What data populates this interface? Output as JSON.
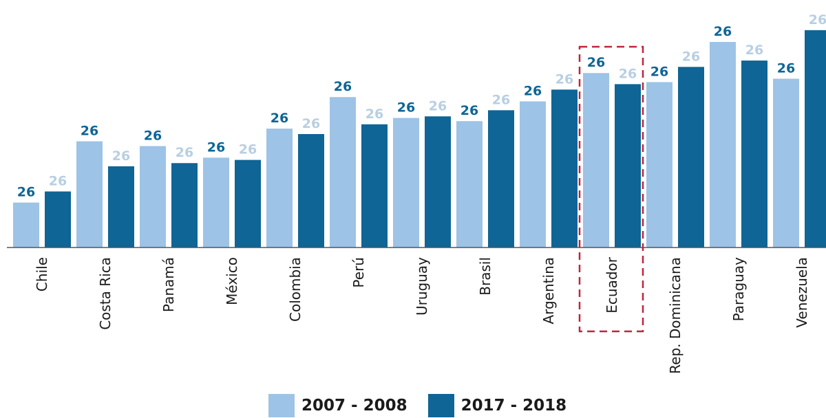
{
  "chart_data": {
    "type": "bar",
    "title": "",
    "xlabel": "",
    "ylabel": "",
    "ylim": [
      0,
      100
    ],
    "categories": [
      "Chile",
      "Costa Rica",
      "Panamá",
      "México",
      "Colombia",
      "Perú",
      "Uruguay",
      "Brasil",
      "Argentina",
      "Ecuador",
      "Rep. Dominicana",
      "Paraguay",
      "Venezuela"
    ],
    "highlighted_category": "Ecuador",
    "series": [
      {
        "name": "2007 - 2008",
        "color": "#9dc3e6",
        "values": [
          19.8,
          46.8,
          44.7,
          39.6,
          52.4,
          66.3,
          57.1,
          55.7,
          64.4,
          76.9,
          72.9,
          90.6,
          74.4
        ],
        "labels": [
          "26",
          "26",
          "26",
          "26",
          "26",
          "26",
          "26",
          "26",
          "26",
          "26",
          "26",
          "26",
          "26"
        ]
      },
      {
        "name": "2017 - 2018",
        "color": "#0e6596",
        "values": [
          24.7,
          35.8,
          37.2,
          38.6,
          50.0,
          54.3,
          57.8,
          60.5,
          69.6,
          72.0,
          79.6,
          82.4,
          95.8
        ],
        "labels": [
          "26",
          "26",
          "26",
          "26",
          "26",
          "26",
          "26",
          "26",
          "26",
          "26",
          "26",
          "26",
          "26"
        ]
      }
    ],
    "legend": {
      "position": "bottom",
      "items": [
        {
          "label": "2007 - 2008",
          "color": "#9dc3e6"
        },
        {
          "label": "2017 - 2018",
          "color": "#0e6596"
        }
      ]
    }
  }
}
